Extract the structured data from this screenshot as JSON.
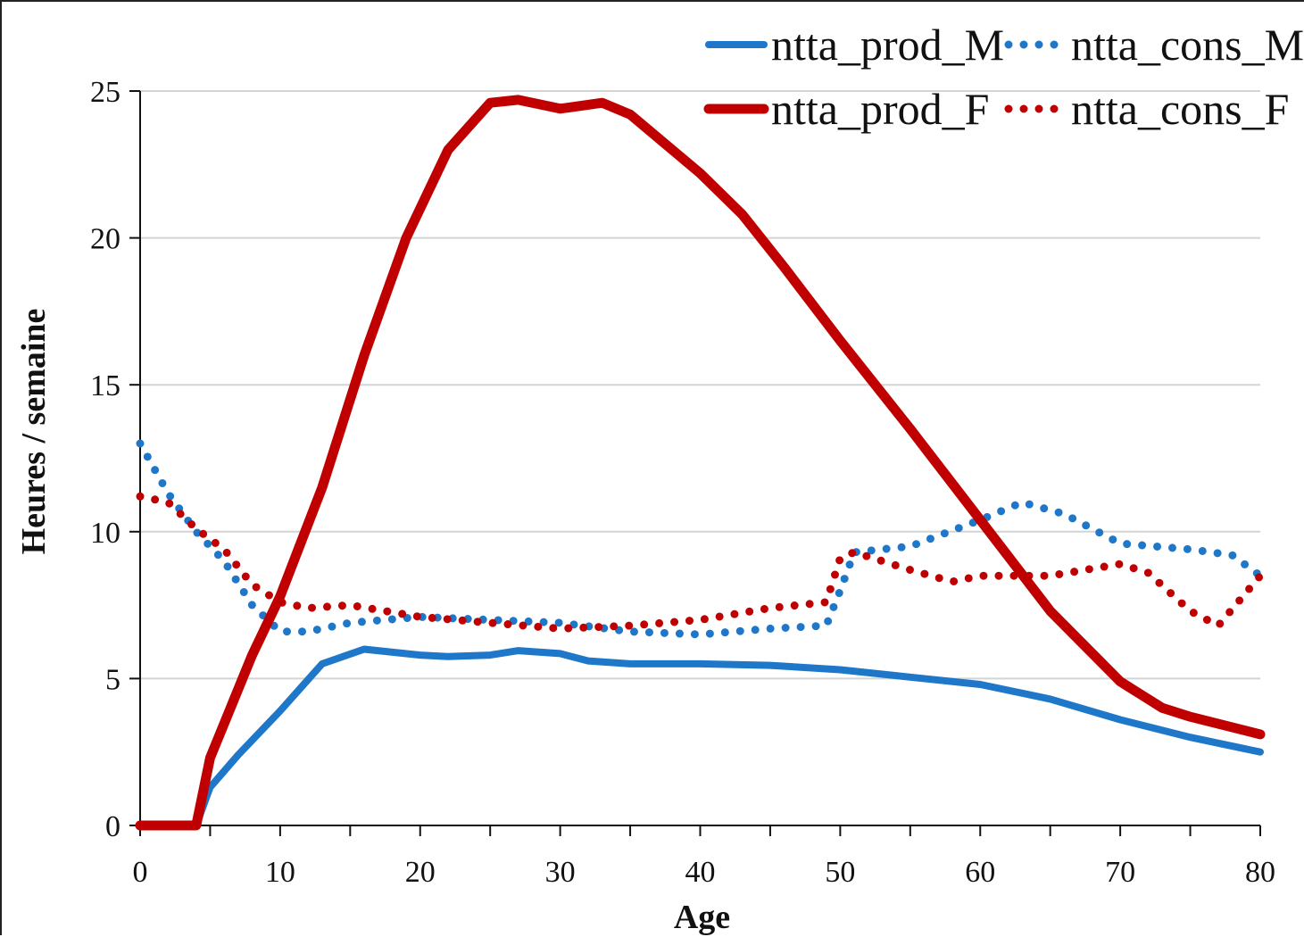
{
  "chart_data": {
    "type": "line",
    "title": "",
    "xlabel": "Age",
    "ylabel": "Heures / semaine",
    "xlim": [
      0,
      80
    ],
    "ylim": [
      0,
      25
    ],
    "xticks": [
      "0",
      "10",
      "20",
      "30",
      "40",
      "50",
      "60",
      "70",
      "80"
    ],
    "yticks": [
      "0",
      "5",
      "10",
      "15",
      "20",
      "25"
    ],
    "grid": "horizontal",
    "legend_position": "top-right",
    "series": [
      {
        "name": "ntta_prod_M",
        "color": "#1f77c9",
        "style": "solid",
        "x": [
          0,
          4,
          5,
          7,
          10,
          13,
          16,
          20,
          22,
          25,
          27,
          30,
          32,
          35,
          40,
          45,
          50,
          55,
          60,
          65,
          70,
          75,
          77,
          80
        ],
        "y": [
          0,
          0,
          1.3,
          2.4,
          3.9,
          5.5,
          6.0,
          5.8,
          5.75,
          5.8,
          5.95,
          5.85,
          5.6,
          5.5,
          5.5,
          5.45,
          5.3,
          5.05,
          4.8,
          4.3,
          3.6,
          3.0,
          2.8,
          2.5
        ]
      },
      {
        "name": "ntta_cons_M",
        "color": "#1f77c9",
        "style": "dotted",
        "x": [
          0,
          2,
          4,
          6,
          8,
          10,
          12,
          15,
          20,
          25,
          30,
          35,
          40,
          45,
          49,
          50,
          51,
          55,
          60,
          63,
          66,
          70,
          75,
          78,
          80
        ],
        "y": [
          13.0,
          11.3,
          10.0,
          9.0,
          7.5,
          6.6,
          6.6,
          6.9,
          7.1,
          7.0,
          6.9,
          6.6,
          6.5,
          6.7,
          6.8,
          8.0,
          9.3,
          9.5,
          10.4,
          11.0,
          10.6,
          9.6,
          9.4,
          9.2,
          8.5
        ]
      },
      {
        "name": "ntta_prod_F",
        "color": "#c00000",
        "style": "solid",
        "x": [
          0,
          4,
          5,
          8,
          10,
          13,
          16,
          19,
          22,
          25,
          27,
          30,
          33,
          35,
          38,
          40,
          43,
          46,
          50,
          55,
          60,
          65,
          70,
          73,
          75,
          80
        ],
        "y": [
          0,
          0,
          2.3,
          5.8,
          7.8,
          11.5,
          16.0,
          20.0,
          23.0,
          24.6,
          24.7,
          24.4,
          24.6,
          24.2,
          23.0,
          22.2,
          20.8,
          19.0,
          16.5,
          13.5,
          10.4,
          7.3,
          4.9,
          4.0,
          3.7,
          3.1
        ]
      },
      {
        "name": "ntta_cons_F",
        "color": "#c00000",
        "style": "dotted",
        "x": [
          0,
          2,
          4,
          6,
          8,
          10,
          12,
          15,
          20,
          25,
          30,
          35,
          40,
          45,
          49,
          50,
          51,
          55,
          58,
          60,
          65,
          70,
          72,
          75,
          77,
          80
        ],
        "y": [
          11.2,
          11.0,
          10.1,
          9.4,
          8.2,
          7.6,
          7.4,
          7.5,
          7.1,
          6.9,
          6.7,
          6.8,
          7.0,
          7.4,
          7.6,
          9.1,
          9.3,
          8.7,
          8.3,
          8.5,
          8.5,
          8.9,
          8.6,
          7.3,
          6.8,
          8.5
        ]
      }
    ]
  }
}
